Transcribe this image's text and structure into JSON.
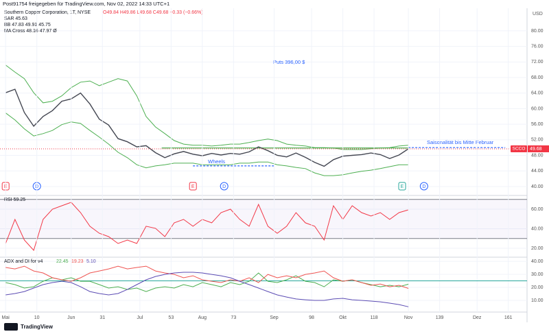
{
  "header": {
    "share": "Post91754 freigegeben für TradingView.com, Nov 02, 2022 14:33 UTC+1",
    "currency": "USD",
    "brand": "TradingView"
  },
  "chart_data": [
    {
      "type": "line",
      "title": "Southern Copper Corporation, 1T, NYSE",
      "subtitle": "O49.84 H49.86 L49.68 C49.68 −0.33 (−0.66%)",
      "legend": [
        "SAR 45.63",
        "BB 47.83 49.91 45.75",
        "MA Cross 48.16 47.97 Ø"
      ],
      "symbol": "SCCO",
      "annotations": [
        "Puts 396,00 $",
        "Saisonalität bis Mitte Februar",
        "Wheels"
      ],
      "x": [
        0,
        3,
        6,
        9,
        12,
        15,
        18,
        21,
        24,
        27,
        30,
        33,
        36,
        39,
        42,
        45,
        48,
        51,
        54,
        57,
        60,
        63,
        66,
        69,
        72,
        75,
        78,
        81,
        84,
        87,
        90,
        93,
        96,
        99,
        102,
        105,
        108,
        111,
        114,
        117,
        120,
        123,
        126,
        129
      ],
      "xlim": [
        -1.8,
        167
      ],
      "series": [
        {
          "color": "#434651",
          "values": [
            64.1,
            65,
            59,
            55.5,
            58,
            59.5,
            61.9,
            62.5,
            64,
            61.2,
            57.3,
            55.8,
            52.3,
            51.5,
            50.2,
            50.5,
            48.7,
            47.4,
            48.4,
            49,
            48.3,
            47.9,
            48.5,
            48.1,
            48.5,
            48.3,
            48.9,
            50.2,
            49.2,
            48,
            47.6,
            48.6,
            47.5,
            46.2,
            45.2,
            46.9,
            47.8,
            48,
            48.2,
            48.6,
            48.2,
            47.2,
            48.1,
            49.68
          ]
        },
        {
          "color": "#4caf50",
          "values": [
            71.2,
            69.4,
            67.7,
            64.1,
            61.5,
            61.9,
            63.3,
            65.4,
            66.8,
            67.1,
            65.9,
            66.8,
            67.7,
            67.1,
            63.3,
            58,
            55.3,
            53.6,
            51.8,
            50.9,
            50.6,
            50.6,
            50.4,
            50.6,
            50.9,
            50.9,
            51.3,
            51.8,
            52.2,
            51.8,
            50.9,
            50.6,
            50.4,
            50,
            50,
            49.9,
            49.5,
            49.5,
            49.5,
            49.7,
            49.9,
            50,
            50.4,
            50.6
          ]
        },
        {
          "color": "#4caf50",
          "values": [
            58.9,
            57.1,
            54.8,
            53,
            53.6,
            54.4,
            55.9,
            56.6,
            56.2,
            54.4,
            52.7,
            50.9,
            48.8,
            47.4,
            45.6,
            44.8,
            45.3,
            45.6,
            46,
            46,
            46,
            45.6,
            45.6,
            45.6,
            45.6,
            46,
            46,
            46.3,
            46.3,
            45.6,
            45.3,
            44.9,
            44.6,
            43.5,
            42.8,
            42.8,
            43,
            43.5,
            43.9,
            44.2,
            44.6,
            45.1,
            45.6,
            45.6
          ]
        }
      ],
      "levels": [
        {
          "value": 49.9,
          "from": 50,
          "to": 129,
          "color": "#4caf50",
          "dashed": false
        },
        {
          "value": 50.0,
          "from": 129,
          "to": 160,
          "color": "#2962ff",
          "dashed": true
        },
        {
          "value": 45.3,
          "from": 60,
          "to": 86,
          "color": "#2962ff",
          "dashed": true
        }
      ],
      "events": [
        {
          "x": 0,
          "label": "E"
        },
        {
          "x": 10,
          "label": "D"
        },
        {
          "x": 60,
          "label": "E"
        },
        {
          "x": 70,
          "label": "D"
        },
        {
          "x": 127,
          "label": "E"
        },
        {
          "x": 134,
          "label": "D"
        }
      ],
      "ylim": [
        37.7,
        85.8
      ],
      "yticks": [
        {
          "value": 40,
          "label": "40.00"
        },
        {
          "value": 44,
          "label": "44.00"
        },
        {
          "value": 48,
          "label": "48.00"
        },
        {
          "value": 52,
          "label": "52.00"
        },
        {
          "value": 56,
          "label": "56.00"
        },
        {
          "value": 60,
          "label": "60.00"
        },
        {
          "value": 64,
          "label": "64.00"
        },
        {
          "value": 68,
          "label": "68.00"
        },
        {
          "value": 72,
          "label": "72.00"
        },
        {
          "value": 76,
          "label": "76.00"
        },
        {
          "value": 80,
          "label": "80.00"
        }
      ]
    },
    {
      "type": "line",
      "title": "RSI 59.25",
      "x": [
        0,
        3,
        6,
        9,
        12,
        15,
        18,
        21,
        24,
        27,
        30,
        33,
        36,
        39,
        42,
        45,
        48,
        51,
        54,
        57,
        60,
        63,
        66,
        69,
        72,
        75,
        78,
        81,
        84,
        87,
        90,
        93,
        96,
        99,
        102,
        105,
        108,
        111,
        114,
        117,
        120,
        123,
        126,
        129
      ],
      "xlim": [
        -1.8,
        167
      ],
      "series": [
        {
          "color": "#f23645",
          "values": [
            24.9,
            49.5,
            28.4,
            17.9,
            49.5,
            60,
            63.5,
            67,
            56.5,
            42.5,
            35.4,
            31.9,
            24.9,
            28.4,
            24.9,
            42.5,
            40.4,
            31.9,
            46,
            49.5,
            42.5,
            49.5,
            46,
            56.5,
            60,
            49.5,
            42.5,
            64.9,
            42.5,
            35.4,
            42.5,
            56.5,
            46,
            42.5,
            28.4,
            63.5,
            49.5,
            63.5,
            56.5,
            53,
            56.5,
            49.5,
            56.5,
            59.25
          ]
        }
      ],
      "bands": [
        30,
        70
      ],
      "ylim": [
        10.9,
        74
      ],
      "yticks": [
        {
          "value": 20,
          "label": "20.00"
        },
        {
          "value": 40,
          "label": "40.00"
        },
        {
          "value": 60,
          "label": "60.00"
        }
      ]
    },
    {
      "type": "line",
      "title": "ADX and DI for v4",
      "legend": [
        "22.45",
        "19.23",
        "5.10"
      ],
      "x": [
        0,
        3,
        6,
        9,
        12,
        15,
        18,
        21,
        24,
        27,
        30,
        33,
        36,
        39,
        42,
        45,
        48,
        51,
        54,
        57,
        60,
        63,
        66,
        69,
        72,
        75,
        78,
        81,
        84,
        87,
        90,
        93,
        96,
        99,
        102,
        105,
        108,
        111,
        114,
        117,
        120,
        123,
        126,
        129
      ],
      "xlim": [
        -1.8,
        167
      ],
      "series": [
        {
          "color": "#4caf50",
          "values": [
            23.7,
            22.1,
            19.5,
            20.5,
            24.7,
            27.4,
            25.8,
            27.4,
            24.7,
            24.7,
            22.1,
            19.5,
            20.5,
            18.4,
            19.5,
            16.8,
            19.5,
            20.5,
            19.5,
            22.1,
            20.5,
            23.7,
            22.1,
            20.5,
            23.7,
            22.1,
            24.7,
            31.1,
            24.7,
            23.7,
            25.8,
            28.9,
            24.7,
            23.7,
            20.5,
            25.8,
            24.7,
            25.8,
            23.7,
            22.1,
            20.5,
            21.6,
            20.5,
            22.45
          ]
        },
        {
          "color": "#ef5350",
          "values": [
            35.3,
            34.2,
            36.3,
            32.6,
            31.1,
            27.4,
            25.8,
            24.7,
            27.4,
            31.1,
            32.6,
            34.2,
            36.3,
            34.2,
            35.3,
            36.3,
            32.6,
            31.1,
            30,
            27.4,
            28.9,
            25.8,
            24.7,
            23.7,
            25.8,
            24.7,
            27.4,
            23.7,
            30,
            27.4,
            28.9,
            27.4,
            30,
            31.1,
            32.6,
            27.4,
            24.7,
            25.8,
            23.7,
            21.6,
            22.6,
            20.5,
            21.6,
            19.23
          ]
        },
        {
          "color": "#5b4bb3",
          "values": [
            14.2,
            15.3,
            16.8,
            19.5,
            22.1,
            23.7,
            24.7,
            23.7,
            20.5,
            16.8,
            15.3,
            14.2,
            15.3,
            18.4,
            22.1,
            25.8,
            28.4,
            30,
            31.1,
            31.6,
            31.6,
            31.1,
            30,
            28.9,
            27.4,
            24.7,
            22.1,
            19.5,
            16.8,
            14.2,
            12.6,
            11.1,
            10.5,
            10,
            10,
            11.1,
            11.6,
            10.5,
            10,
            9.5,
            8.9,
            7.9,
            6.8,
            5.1
          ]
        }
      ],
      "level": 25,
      "ylim": [
        1.05,
        43.2
      ],
      "yticks": [
        {
          "value": 10,
          "label": "10.00"
        },
        {
          "value": 20,
          "label": "20.00"
        },
        {
          "value": 30,
          "label": "30.00"
        },
        {
          "value": 40,
          "label": "40.00"
        }
      ],
      "xticks": [
        {
          "value": 0,
          "label": "Mai"
        },
        10,
        {
          "value": 21,
          "label": "Jun"
        },
        31,
        {
          "value": 43,
          "label": "Jul"
        },
        53,
        {
          "value": 63,
          "label": "Aug"
        },
        73,
        {
          "value": 86,
          "label": "Sep"
        },
        98,
        {
          "value": 108,
          "label": "Okt"
        },
        118,
        {
          "value": 129,
          "label": "Nov"
        },
        139,
        {
          "value": 151,
          "label": "Dez"
        },
        161
      ]
    }
  ]
}
